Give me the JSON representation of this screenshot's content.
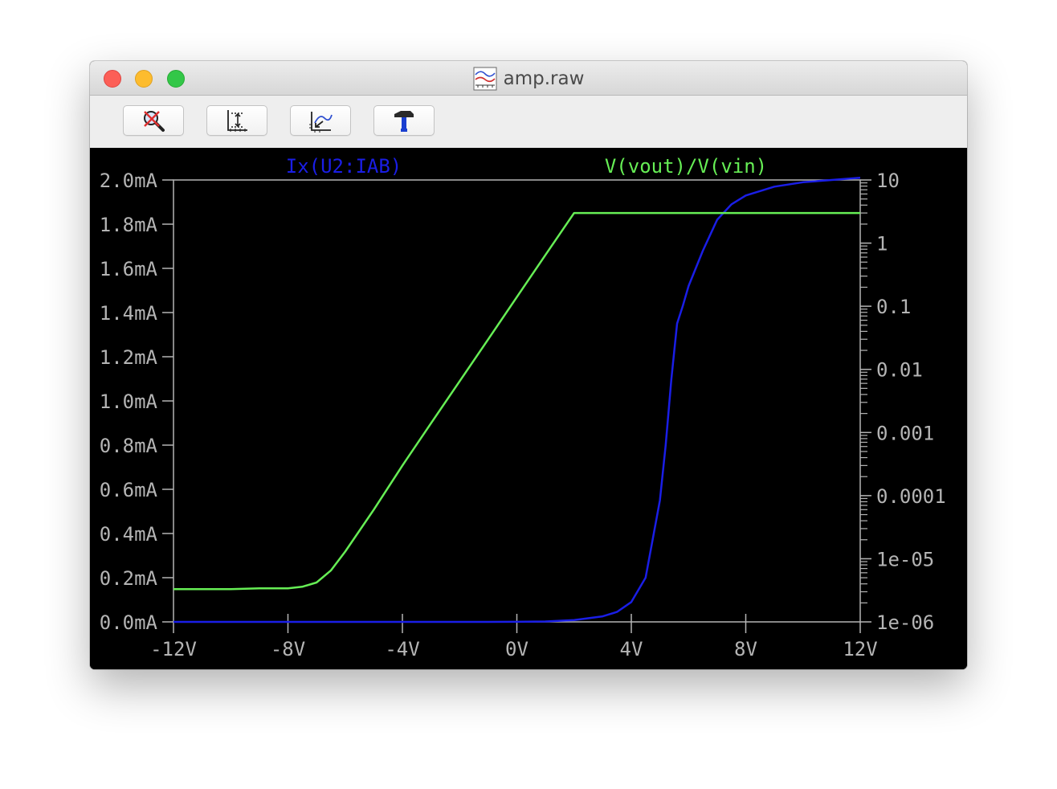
{
  "window": {
    "title": "amp.raw",
    "title_icon": "waveform-plot-icon"
  },
  "toolbar": {
    "buttons": [
      {
        "icon": "zoom-cancel-icon"
      },
      {
        "icon": "autorange-icon"
      },
      {
        "icon": "zoom-back-icon"
      },
      {
        "icon": "hammer-icon"
      }
    ]
  },
  "chart_data": {
    "type": "line",
    "x": [
      -12,
      -11,
      -10,
      -9,
      -8,
      -7.5,
      -7,
      -6.5,
      -6,
      -5,
      -4,
      -3,
      -2,
      -1,
      0,
      1,
      2,
      3,
      3.5,
      4,
      4.5,
      5,
      5.2,
      5.4,
      5.6,
      5.8,
      6,
      6.5,
      7,
      7.5,
      8,
      9,
      10,
      11,
      12
    ],
    "xlabel_unit": "V",
    "x_ticks": [
      "-12V",
      "-8V",
      "-4V",
      "0V",
      "4V",
      "8V",
      "12V"
    ],
    "xlim": [
      -12,
      12
    ],
    "y_left": {
      "ylim": [
        0,
        2.0
      ],
      "unit": "mA",
      "ticks": [
        "0.0mA",
        "0.2mA",
        "0.4mA",
        "0.6mA",
        "0.8mA",
        "1.0mA",
        "1.2mA",
        "1.4mA",
        "1.6mA",
        "1.8mA",
        "2.0mA"
      ]
    },
    "y_right": {
      "scale": "log",
      "ylim": [
        1e-06,
        10
      ],
      "ticks": [
        "10",
        "1",
        "0.1",
        "0.01",
        "0.001",
        "0.0001",
        "1e-05",
        "1e-06"
      ]
    },
    "series": [
      {
        "name": "Ix(U2:IAB)",
        "axis": "left",
        "color": "#1a1ee6",
        "values": [
          0,
          0,
          0,
          0,
          0,
          0,
          0,
          0,
          0,
          0,
          0,
          0,
          0,
          0,
          0.0005,
          0.002,
          0.008,
          0.025,
          0.045,
          0.09,
          0.2,
          0.55,
          0.8,
          1.1,
          1.35,
          1.43,
          1.52,
          1.68,
          1.82,
          1.89,
          1.93,
          1.97,
          1.99,
          2.0,
          2.01
        ]
      },
      {
        "name": "V(vout)/V(vin)",
        "axis": "right",
        "color": "#66ee55",
        "values": [
          3.3e-06,
          3.3e-06,
          3.3e-06,
          3.4e-06,
          3.4e-06,
          3.6e-06,
          4.2e-06,
          6.5e-06,
          1.3e-05,
          6e-05,
          0.0003,
          0.0014,
          0.0065,
          0.03,
          0.14,
          0.65,
          3.0,
          3.0,
          3.0,
          3.0,
          3.0,
          3.0,
          3.0,
          3.0,
          3.0,
          3.0,
          3.0,
          3.0,
          3.0,
          3.0,
          3.0,
          3.0,
          3.0,
          3.0,
          3.0
        ]
      }
    ],
    "grid": false,
    "legend": "top"
  }
}
